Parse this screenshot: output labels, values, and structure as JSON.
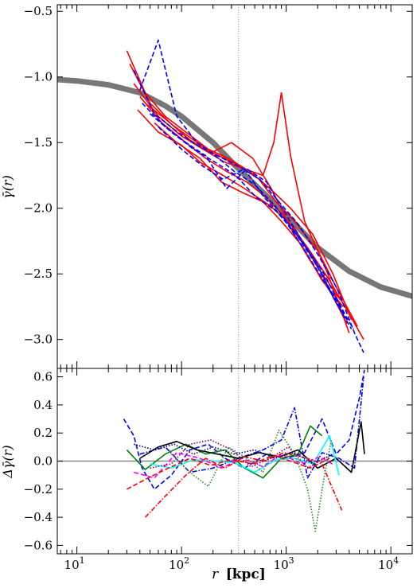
{
  "chart_data": [
    {
      "type": "line",
      "panel": "top",
      "ylabel": "γ̄(r)",
      "xscale": "log",
      "xlim": [
        6.5,
        16000
      ],
      "ylim": [
        -3.22,
        -0.45
      ],
      "yticks": [
        -3.0,
        -2.5,
        -2.0,
        -1.5,
        -1.0,
        -0.5
      ],
      "ytick_labels": [
        "−3.0",
        "−2.5",
        "−2.0",
        "−1.5",
        "−1.0",
        "−0.5"
      ],
      "vline_x": 350,
      "model_curve": {
        "color": "#777777",
        "x": [
          6.5,
          10,
          20,
          40,
          70,
          100,
          200,
          350,
          600,
          1000,
          2000,
          4000,
          8000,
          16000
        ],
        "y": [
          -1.02,
          -1.03,
          -1.06,
          -1.12,
          -1.22,
          -1.3,
          -1.5,
          -1.7,
          -1.88,
          -2.05,
          -2.3,
          -2.48,
          -2.6,
          -2.67
        ]
      },
      "series": [
        {
          "color": "#ff0000",
          "dash": "solid",
          "x": [
            30,
            45,
            70,
            110,
            180,
            280,
            450,
            700,
            1100,
            1800,
            2800,
            4200
          ],
          "y": [
            -0.8,
            -1.12,
            -1.3,
            -1.42,
            -1.55,
            -1.62,
            -1.72,
            -1.85,
            -2.0,
            -2.2,
            -2.5,
            -2.85
          ]
        },
        {
          "color": "#ff0000",
          "dash": "solid",
          "x": [
            32,
            50,
            80,
            130,
            200,
            330,
            550,
            800,
            1200,
            2000,
            3000,
            4800
          ],
          "y": [
            -0.9,
            -1.2,
            -1.36,
            -1.48,
            -1.58,
            -1.66,
            -1.78,
            -1.95,
            -2.1,
            -2.32,
            -2.6,
            -2.9
          ]
        },
        {
          "color": "#ff0000",
          "dash": "solid",
          "x": [
            35,
            60,
            100,
            160,
            260,
            400,
            600,
            760,
            900,
            1100,
            1500,
            2500,
            4000
          ],
          "y": [
            -1.05,
            -1.3,
            -1.45,
            -1.55,
            -1.65,
            -1.7,
            -1.75,
            -1.5,
            -1.12,
            -1.6,
            -2.1,
            -2.5,
            -2.95
          ]
        },
        {
          "color": "#ff0000",
          "dash": "solid",
          "x": [
            40,
            65,
            110,
            170,
            270,
            420,
            650,
            1000,
            1600,
            2600,
            4100,
            5500
          ],
          "y": [
            -1.15,
            -1.35,
            -1.5,
            -1.62,
            -1.72,
            -1.8,
            -1.92,
            -2.08,
            -2.3,
            -2.55,
            -2.82,
            -3.0
          ]
        },
        {
          "color": "#ff0000",
          "dash": "solid",
          "x": [
            45,
            70,
            120,
            190,
            300,
            480,
            720,
            1100,
            1700,
            2700,
            3800
          ],
          "y": [
            -1.2,
            -1.32,
            -1.48,
            -1.58,
            -1.5,
            -1.62,
            -1.85,
            -2.15,
            -2.4,
            -2.65,
            -2.88
          ]
        },
        {
          "color": "#ff0000",
          "dash": "solid",
          "x": [
            55,
            90,
            150,
            240,
            380,
            600,
            900,
            1400,
            2200,
            3500
          ],
          "y": [
            -1.35,
            -1.5,
            -1.62,
            -1.8,
            -1.88,
            -1.95,
            -2.1,
            -2.28,
            -2.55,
            -2.75
          ]
        },
        {
          "color": "#ff0000",
          "dash": "solid",
          "x": [
            38,
            60,
            100,
            150,
            250,
            400,
            700,
            1200,
            2000,
            3300
          ],
          "y": [
            -1.25,
            -1.42,
            -1.52,
            -1.65,
            -1.75,
            -1.85,
            -1.98,
            -2.15,
            -2.45,
            -2.7
          ]
        },
        {
          "color": "#0000ff",
          "dash": "dashed",
          "x": [
            35,
            55,
            85,
            140,
            220,
            350,
            560,
            850,
            1300,
            2000,
            3100,
            4500,
            5500
          ],
          "y": [
            -0.95,
            -1.28,
            -1.4,
            -1.52,
            -1.6,
            -1.68,
            -1.78,
            -1.95,
            -2.12,
            -2.35,
            -2.62,
            -2.95,
            -3.1
          ]
        },
        {
          "color": "#0000ff",
          "dash": "dashed",
          "x": [
            40,
            60,
            90,
            140,
            210,
            320,
            500,
            780,
            1200,
            1900,
            2900,
            4200
          ],
          "y": [
            -1.1,
            -0.72,
            -1.3,
            -1.5,
            -1.6,
            -1.72,
            -1.82,
            -1.98,
            -2.18,
            -2.4,
            -2.7,
            -2.92
          ]
        },
        {
          "color": "#0000ff",
          "dash": "dashed",
          "x": [
            42,
            70,
            110,
            170,
            270,
            420,
            650,
            1000,
            1500,
            2300,
            3600
          ],
          "y": [
            -1.2,
            -1.38,
            -1.5,
            -1.6,
            -1.85,
            -1.7,
            -1.8,
            -2.05,
            -2.28,
            -2.5,
            -2.8
          ]
        },
        {
          "color": "#0000ff",
          "dash": "dashed",
          "x": [
            50,
            80,
            130,
            210,
            330,
            520,
            800,
            1250,
            1900,
            2900,
            4400
          ],
          "y": [
            -1.28,
            -1.42,
            -1.55,
            -1.65,
            -1.75,
            -1.92,
            -2.02,
            -2.2,
            -2.42,
            -2.68,
            -2.92
          ]
        },
        {
          "color": "#0000ff",
          "dash": "dashed",
          "x": [
            60,
            100,
            160,
            250,
            400,
            620,
            950,
            1500,
            2400,
            3800
          ],
          "y": [
            -1.38,
            -1.55,
            -1.68,
            -1.78,
            -1.7,
            -1.92,
            -2.08,
            -2.32,
            -2.58,
            -2.85
          ]
        }
      ]
    },
    {
      "type": "line",
      "panel": "bottom",
      "ylabel": "Δγ̄(r)",
      "xlabel_italic": "r",
      "xlabel_unit": "[kpc]",
      "xscale": "log",
      "xlim": [
        6.5,
        16000
      ],
      "ylim": [
        -0.66,
        0.66
      ],
      "yticks": [
        -0.6,
        -0.4,
        -0.2,
        0.0,
        0.2,
        0.4,
        0.6
      ],
      "ytick_labels": [
        "−0.6",
        "−0.4",
        "−0.2",
        "0.0",
        "0.2",
        "0.4",
        "0.6"
      ],
      "xticks": [
        10,
        100,
        1000,
        10000
      ],
      "xtick_labels": [
        "10",
        "10",
        "10",
        "10"
      ],
      "xtick_exponents": [
        "1",
        "2",
        "3",
        "4"
      ],
      "hline_y": 0.0,
      "vline_x": 350,
      "series": [
        {
          "color": "#0000ff",
          "dash": "dashed",
          "x": [
            28,
            35,
            42,
            55,
            80,
            120,
            180,
            260,
            400,
            650,
            1000,
            1500,
            2200,
            3000,
            4000,
            5000,
            5600
          ],
          "y": [
            0.3,
            0.18,
            -0.05,
            -0.2,
            -0.1,
            0.08,
            0.12,
            0.02,
            -0.05,
            0.05,
            0.02,
            0.06,
            0.3,
            0.05,
            0.15,
            0.45,
            0.65
          ]
        },
        {
          "color": "#0000ff",
          "dash": "dashdot",
          "x": [
            40,
            70,
            120,
            200,
            350,
            600,
            900,
            1200,
            1600,
            2200,
            3200,
            4500,
            5500
          ],
          "y": [
            0.05,
            0.1,
            -0.08,
            -0.05,
            0.02,
            0.08,
            0.15,
            0.38,
            -0.12,
            0.06,
            0.02,
            -0.05,
            0.6
          ]
        },
        {
          "color": "#008000",
          "dash": "solid",
          "x": [
            30,
            45,
            70,
            110,
            170,
            260,
            400,
            600,
            900,
            1300,
            1700,
            2200
          ],
          "y": [
            0.08,
            -0.06,
            0.05,
            0.12,
            0.05,
            0.08,
            -0.05,
            -0.12,
            0.02,
            0.05,
            0.25,
            0.18
          ]
        },
        {
          "color": "#000000",
          "dash": "solid",
          "x": [
            40,
            60,
            90,
            140,
            220,
            350,
            550,
            850,
            1300,
            2000,
            3000,
            4200,
            5200,
            5600
          ],
          "y": [
            0.02,
            0.1,
            0.14,
            0.08,
            0.05,
            0.02,
            0.06,
            0.03,
            0.08,
            -0.05,
            0.02,
            -0.08,
            0.28,
            0.05
          ]
        },
        {
          "color": "#00ffff",
          "dash": "solid",
          "x": [
            50,
            80,
            130,
            200,
            320,
            500,
            800,
            1200,
            1800,
            2600,
            3200
          ],
          "y": [
            -0.02,
            -0.05,
            0.01,
            0.0,
            -0.01,
            -0.08,
            0.01,
            0.02,
            -0.02,
            0.18,
            -0.1
          ]
        },
        {
          "color": "#ff00ff",
          "dash": "dashed",
          "x": [
            35,
            55,
            90,
            150,
            240,
            380,
            600,
            900,
            1400,
            2100,
            2900
          ],
          "y": [
            -0.08,
            -0.12,
            0.06,
            0.02,
            -0.05,
            0.02,
            -0.04,
            0.05,
            -0.02,
            0.03,
            -0.03
          ]
        },
        {
          "color": "#ff0000",
          "dash": "dashed",
          "x": [
            30,
            48,
            75,
            120,
            190,
            300,
            480,
            750,
            1100,
            1700,
            2600
          ],
          "y": [
            -0.2,
            -0.12,
            -0.05,
            0.02,
            -0.03,
            0.01,
            -0.02,
            0.04,
            0.0,
            -0.05,
            0.02
          ]
        },
        {
          "color": "#ff0000",
          "dash": "dashdot",
          "x": [
            45,
            70,
            110,
            170,
            260,
            400,
            620,
            950,
            1450,
            2200,
            3400
          ],
          "y": [
            -0.4,
            -0.25,
            -0.1,
            0.02,
            -0.05,
            0.03,
            0.0,
            0.06,
            0.03,
            -0.02,
            -0.35
          ]
        },
        {
          "color": "#228b22",
          "dash": "dotted",
          "x": [
            80,
            120,
            180,
            280,
            420,
            600,
            850,
            1200,
            1600,
            1900,
            2300,
            2700
          ],
          "y": [
            0.05,
            -0.08,
            -0.18,
            0.1,
            0.02,
            -0.08,
            0.22,
            0.05,
            -0.2,
            -0.5,
            -0.12,
            0.15
          ]
        },
        {
          "color": "#000080",
          "dash": "dotted",
          "x": [
            35,
            55,
            85,
            130,
            200,
            320,
            500,
            780,
            1200,
            1800,
            2800
          ],
          "y": [
            0.12,
            0.08,
            0.12,
            0.05,
            0.1,
            0.05,
            0.08,
            0.02,
            0.06,
            -0.02,
            0.05
          ]
        },
        {
          "color": "#800080",
          "dash": "dotted",
          "x": [
            50,
            80,
            120,
            190,
            300,
            460,
            700,
            1050,
            1600,
            2400
          ],
          "y": [
            -0.05,
            -0.02,
            0.12,
            0.15,
            0.08,
            -0.04,
            0.02,
            0.1,
            -0.05,
            0.03
          ]
        }
      ]
    }
  ]
}
